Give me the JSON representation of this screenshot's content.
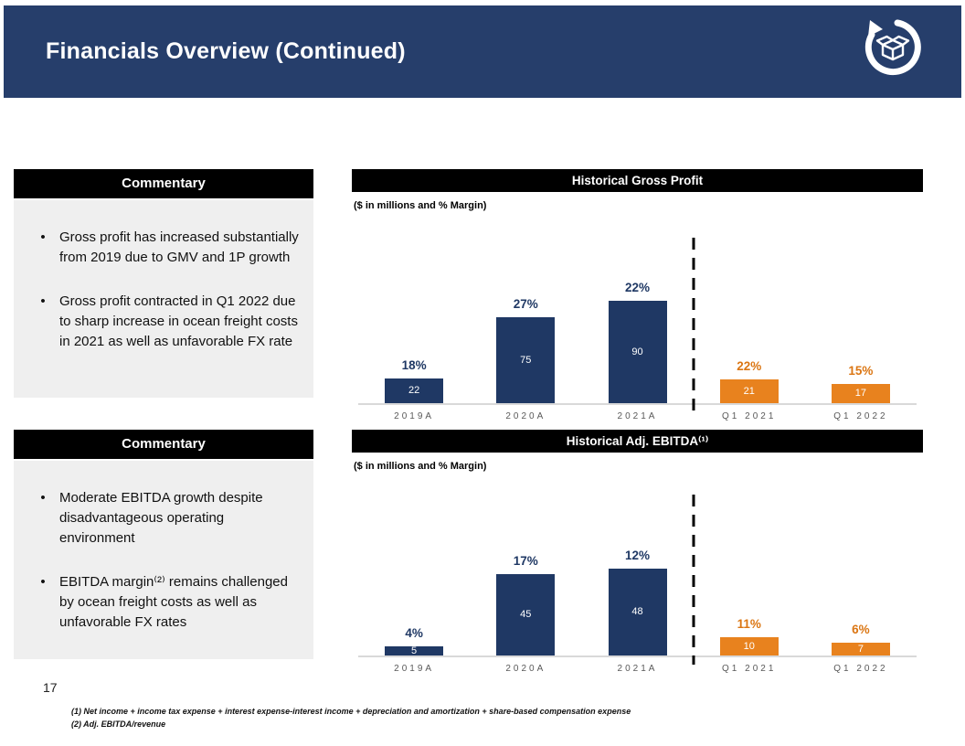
{
  "slide": {
    "title": "Financials Overview (Continued)",
    "page_number": "17",
    "colors": {
      "titlebar_bg": "#263E6B",
      "navy_bar": "#1F3864",
      "orange_bar": "#E8821E",
      "orange_label": "#DB7613",
      "panel_header_bg": "#000000",
      "commentary_bg": "#EFEFEF",
      "category_text": "#595959",
      "baseline": "#D9D9D9"
    }
  },
  "logo": {
    "icon": "circular-arrow-around-open-box-logo"
  },
  "commentary_gross_profit": {
    "title": "Commentary",
    "bullet_glyph": "•",
    "bullets": [
      "Gross profit has increased substantially from 2019 due to GMV and 1P growth",
      "Gross profit contracted in Q1 2022 due to sharp increase in ocean freight costs in 2021 as well as unfavorable FX rate"
    ]
  },
  "commentary_ebitda": {
    "title": "Commentary",
    "bullet_glyph": "•",
    "bullets": [
      "Moderate EBITDA growth despite disadvantageous operating environment",
      "EBITDA margin⁽²⁾ remains challenged by ocean freight costs as well as unfavorable FX rates"
    ]
  },
  "footnotes": [
    "(1) Net income + income tax expense + interest expense-interest income + depreciation and amortization + share-based compensation expense",
    "(2) Adj. EBITDA/revenue"
  ],
  "chart_data": [
    {
      "type": "bar",
      "title": "Historical Gross Profit",
      "subtitle": "($ in millions and % Margin)",
      "categories": [
        "2019A",
        "2020A",
        "2021A",
        "Q1 2021",
        "Q1 2022"
      ],
      "values": [
        22,
        75,
        90,
        21,
        17
      ],
      "margin_labels": [
        "18%",
        "27%",
        "22%",
        "22%",
        "15%"
      ],
      "ylim": [
        0,
        150
      ],
      "grid": false,
      "legend": "none",
      "divider_after_index": 2,
      "bar_colors": [
        "#1F3864",
        "#1F3864",
        "#1F3864",
        "#E8821E",
        "#E8821E"
      ],
      "margin_label_colors": [
        "#1F3864",
        "#1F3864",
        "#1F3864",
        "#DB7613",
        "#DB7613"
      ]
    },
    {
      "type": "bar",
      "title": "Historical Adj. EBITDA⁽¹⁾",
      "subtitle": "($ in millions and % Margin)",
      "categories": [
        "2019A",
        "2020A",
        "2021A",
        "Q1 2021",
        "Q1 2022"
      ],
      "values": [
        5,
        45,
        48,
        10,
        7
      ],
      "margin_labels": [
        "4%",
        "17%",
        "12%",
        "11%",
        "6%"
      ],
      "ylim": [
        0,
        92
      ],
      "grid": false,
      "legend": "none",
      "divider_after_index": 2,
      "bar_colors": [
        "#1F3864",
        "#1F3864",
        "#1F3864",
        "#E8821E",
        "#E8821E"
      ],
      "margin_label_colors": [
        "#1F3864",
        "#1F3864",
        "#1F3864",
        "#DB7613",
        "#DB7613"
      ]
    }
  ]
}
